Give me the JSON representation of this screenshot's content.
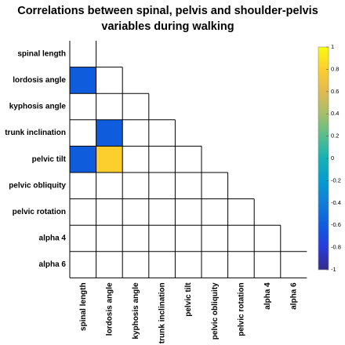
{
  "chart_data": {
    "type": "heatmap",
    "title_lines": [
      "Correlations between spinal, pelvis and shoulder-pelvis",
      "variables during walking"
    ],
    "row_labels": [
      "spinal length",
      "lordosis angle",
      "kyphosis angle",
      "trunk inclination",
      "pelvic tilt",
      "pelvic obliquity",
      "pelvic rotation",
      "alpha 4",
      "alpha 6"
    ],
    "col_labels": [
      "spinal length",
      "lordosis angle",
      "kyphosis angle",
      "trunk inclination",
      "pelvic tilt",
      "pelvic obliquity",
      "pelvic rotation",
      "alpha 4",
      "alpha 6"
    ],
    "matrix_shape": "lower-triangular",
    "significant_cells": [
      {
        "row": "lordosis angle",
        "col": "spinal length",
        "value": -0.6
      },
      {
        "row": "trunk inclination",
        "col": "lordosis angle",
        "value": -0.6
      },
      {
        "row": "pelvic tilt",
        "col": "spinal length",
        "value": -0.6
      },
      {
        "row": "pelvic tilt",
        "col": "lordosis angle",
        "value": 0.8
      }
    ],
    "colorbar": {
      "range": [
        -1,
        1
      ],
      "ticks": [
        "1",
        "0.8",
        "0.6",
        "0.4",
        "0.2",
        "0",
        "-0.2",
        "-0.4",
        "-0.6",
        "-0.8",
        "-1"
      ],
      "colormap": "parula",
      "placement": "right"
    }
  }
}
